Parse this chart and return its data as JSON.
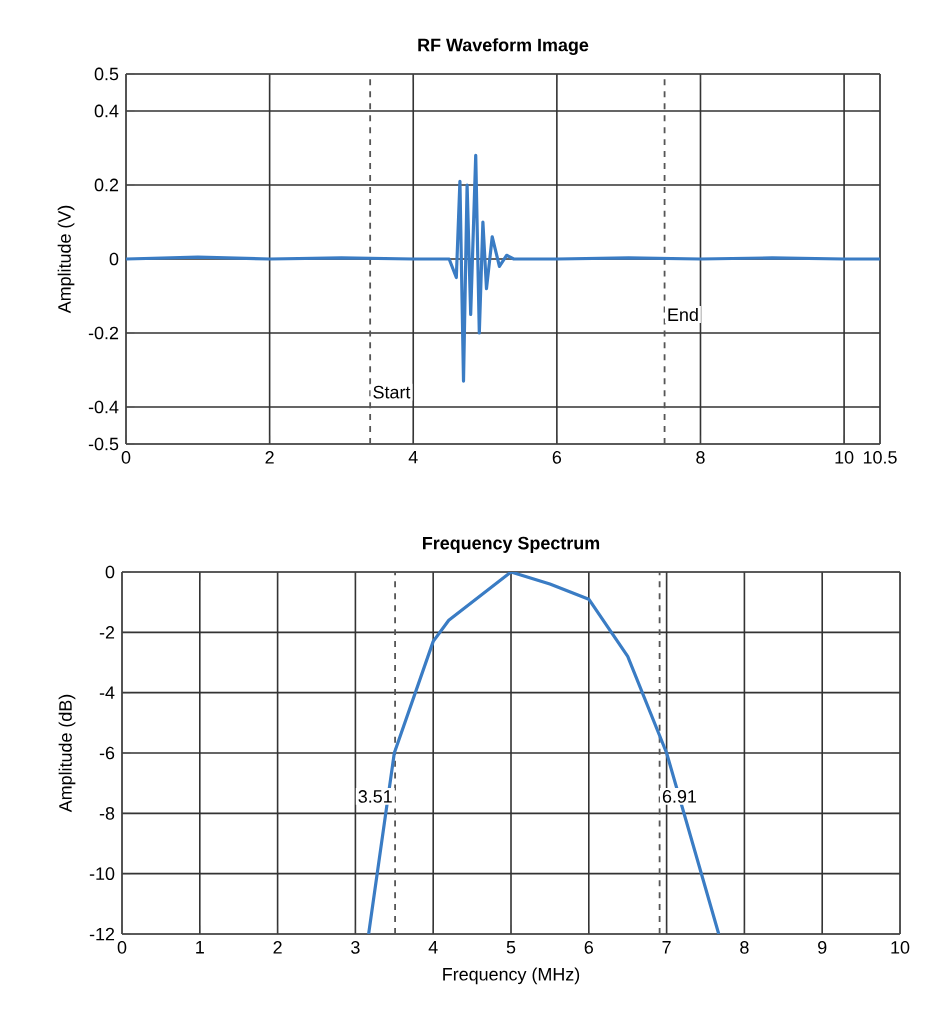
{
  "chart_data": [
    {
      "type": "line",
      "title": "RF Waveform Image",
      "ylabel": "Amplitude (V)",
      "x": [
        0,
        1,
        2,
        3,
        4,
        4.5,
        4.6,
        4.65,
        4.7,
        4.75,
        4.8,
        4.87,
        4.92,
        4.97,
        5.02,
        5.1,
        5.2,
        5.3,
        5.4,
        6,
        7,
        8,
        9,
        10,
        10.5
      ],
      "series": [
        {
          "color": "#3a7cc4",
          "values": [
            0,
            0.005,
            0,
            0.003,
            0,
            0,
            -0.05,
            0.21,
            -0.33,
            0.2,
            -0.15,
            0.28,
            -0.2,
            0.1,
            -0.08,
            0.06,
            -0.02,
            0.01,
            0,
            0,
            0.003,
            0,
            0.003,
            0,
            0
          ]
        }
      ],
      "xlim": [
        0,
        10.5
      ],
      "xticks": [
        0,
        2,
        4,
        6,
        8,
        10,
        {
          "value": 10.5,
          "label": "10.5"
        }
      ],
      "ylim": [
        -0.5,
        0.5
      ],
      "yticks": [
        -0.5,
        -0.4,
        -0.2,
        0,
        0.2,
        0.4,
        0.5
      ],
      "ref_lines": [
        {
          "axis": "x",
          "value": 3.4,
          "label": "Start",
          "line_style": "dashed",
          "color": "#555555"
        },
        {
          "axis": "x",
          "value": 7.5,
          "label": "End",
          "line_style": "dashed",
          "color": "#555555"
        }
      ],
      "grid": true
    },
    {
      "type": "line",
      "title": "Frequency Spectrum",
      "xlabel": "Frequency (MHz)",
      "ylabel": "Amplitude (dB)",
      "x": [
        3.17,
        3.5,
        4.0,
        4.2,
        5.0,
        5.5,
        6.0,
        6.5,
        7.0,
        7.67
      ],
      "series": [
        {
          "color": "#3a7cc4",
          "values": [
            -12,
            -6,
            -2.3,
            -1.6,
            0,
            -0.4,
            -0.9,
            -2.8,
            -6,
            -12
          ]
        }
      ],
      "xlim": [
        0,
        10
      ],
      "xticks": [
        0,
        1,
        2,
        3,
        4,
        5,
        6,
        7,
        8,
        9,
        10
      ],
      "ylim": [
        -12,
        0
      ],
      "yticks": [
        -12,
        -10,
        -8,
        -6,
        -4,
        -2,
        0
      ],
      "ref_lines": [
        {
          "axis": "x",
          "value": 3.51,
          "label": "3.51",
          "line_style": "dashed",
          "color": "#555555"
        },
        {
          "axis": "x",
          "value": 6.91,
          "label": "6.91",
          "line_style": "dashed",
          "color": "#555555"
        }
      ],
      "grid": true
    }
  ]
}
